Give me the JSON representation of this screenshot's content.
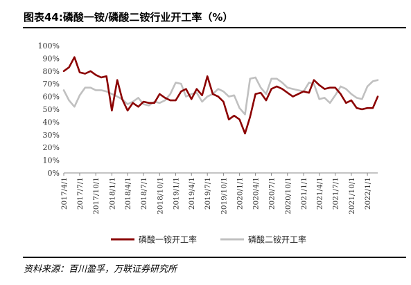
{
  "title": "图表44:磷酸一铵/磷酸二铵行业开工率（%）",
  "source": "资料来源：百川盈孚，万联证券研究所",
  "colors": {
    "series1": "#8b0000",
    "series2": "#c0c0c0",
    "axis": "#888888"
  },
  "chart_data": {
    "type": "line",
    "xlabel": "",
    "ylabel": "",
    "ylim": [
      0,
      100
    ],
    "y_ticks": [
      "0%",
      "10%",
      "20%",
      "30%",
      "40%",
      "50%",
      "60%",
      "70%",
      "80%",
      "90%",
      "100%"
    ],
    "x_ticks": [
      "2017/4/1",
      "2017/7/1",
      "2017/10/1",
      "2018/1/1",
      "2018/4/1",
      "2018/7/1",
      "2018/10/1",
      "2019/1/1",
      "2019/4/1",
      "2019/7/1",
      "2019/10/1",
      "2020/1/1",
      "2020/4/1",
      "2020/7/1",
      "2020/10/1",
      "2021/1/1",
      "2021/4/1",
      "2021/7/1",
      "2021/10/1",
      "2022/1/1"
    ],
    "x_range": [
      "2017/4/1",
      "2022/3/1"
    ],
    "legend_position": "bottom",
    "series": [
      {
        "name": "磷酸一铵开工率",
        "x": [
          "2017/4/1",
          "2017/5/1",
          "2017/6/1",
          "2017/7/1",
          "2017/8/1",
          "2017/9/1",
          "2017/10/1",
          "2017/11/1",
          "2017/12/1",
          "2018/1/1",
          "2018/2/1",
          "2018/3/1",
          "2018/4/1",
          "2018/5/1",
          "2018/6/1",
          "2018/7/1",
          "2018/8/1",
          "2018/9/1",
          "2018/10/1",
          "2018/11/1",
          "2018/12/1",
          "2019/1/1",
          "2019/2/1",
          "2019/3/1",
          "2019/4/1",
          "2019/5/1",
          "2019/6/1",
          "2019/7/1",
          "2019/8/1",
          "2019/9/1",
          "2019/10/1",
          "2019/11/1",
          "2019/12/1",
          "2020/1/1",
          "2020/2/1",
          "2020/3/1",
          "2020/4/1",
          "2020/5/1",
          "2020/6/1",
          "2020/7/1",
          "2020/8/1",
          "2020/9/1",
          "2020/10/1",
          "2020/11/1",
          "2020/12/1",
          "2021/1/1",
          "2021/2/1",
          "2021/3/1",
          "2021/4/1",
          "2021/5/1",
          "2021/6/1",
          "2021/7/1",
          "2021/8/1",
          "2021/9/1",
          "2021/10/1",
          "2021/11/1",
          "2021/12/1",
          "2022/1/1",
          "2022/2/1",
          "2022/3/1"
        ],
        "values": [
          80,
          83,
          91,
          79,
          78,
          80,
          77,
          75,
          76,
          49,
          73,
          58,
          49,
          55,
          52,
          56,
          55,
          55,
          62,
          59,
          57,
          57,
          64,
          66,
          58,
          66,
          61,
          76,
          62,
          60,
          56,
          42,
          45,
          42,
          31,
          44,
          62,
          63,
          57,
          66,
          68,
          66,
          63,
          60,
          62,
          64,
          63,
          73,
          69,
          66,
          67,
          67,
          62,
          55,
          57,
          51,
          50,
          51,
          51,
          60
        ]
      },
      {
        "name": "磷酸二铵开工率",
        "x": [
          "2017/4/1",
          "2017/5/1",
          "2017/6/1",
          "2017/7/1",
          "2017/8/1",
          "2017/9/1",
          "2017/10/1",
          "2017/11/1",
          "2017/12/1",
          "2018/1/1",
          "2018/2/1",
          "2018/3/1",
          "2018/4/1",
          "2018/5/1",
          "2018/6/1",
          "2018/7/1",
          "2018/8/1",
          "2018/9/1",
          "2018/10/1",
          "2018/11/1",
          "2018/12/1",
          "2019/1/1",
          "2019/2/1",
          "2019/3/1",
          "2019/4/1",
          "2019/5/1",
          "2019/6/1",
          "2019/7/1",
          "2019/8/1",
          "2019/9/1",
          "2019/10/1",
          "2019/11/1",
          "2019/12/1",
          "2020/1/1",
          "2020/2/1",
          "2020/3/1",
          "2020/4/1",
          "2020/5/1",
          "2020/6/1",
          "2020/7/1",
          "2020/8/1",
          "2020/9/1",
          "2020/10/1",
          "2020/11/1",
          "2020/12/1",
          "2021/1/1",
          "2021/2/1",
          "2021/3/1",
          "2021/4/1",
          "2021/5/1",
          "2021/6/1",
          "2021/7/1",
          "2021/8/1",
          "2021/9/1",
          "2021/10/1",
          "2021/11/1",
          "2021/12/1",
          "2022/1/1",
          "2022/2/1",
          "2022/3/1"
        ],
        "values": [
          65,
          57,
          52,
          61,
          67,
          67,
          65,
          65,
          64,
          62,
          60,
          58,
          54,
          56,
          59,
          54,
          53,
          56,
          55,
          57,
          62,
          71,
          70,
          60,
          62,
          63,
          56,
          60,
          62,
          66,
          64,
          60,
          61,
          51,
          46,
          74,
          75,
          67,
          62,
          74,
          74,
          71,
          67,
          66,
          65,
          64,
          71,
          70,
          58,
          59,
          55,
          61,
          68,
          66,
          62,
          59,
          58,
          68,
          72,
          73
        ]
      }
    ]
  }
}
